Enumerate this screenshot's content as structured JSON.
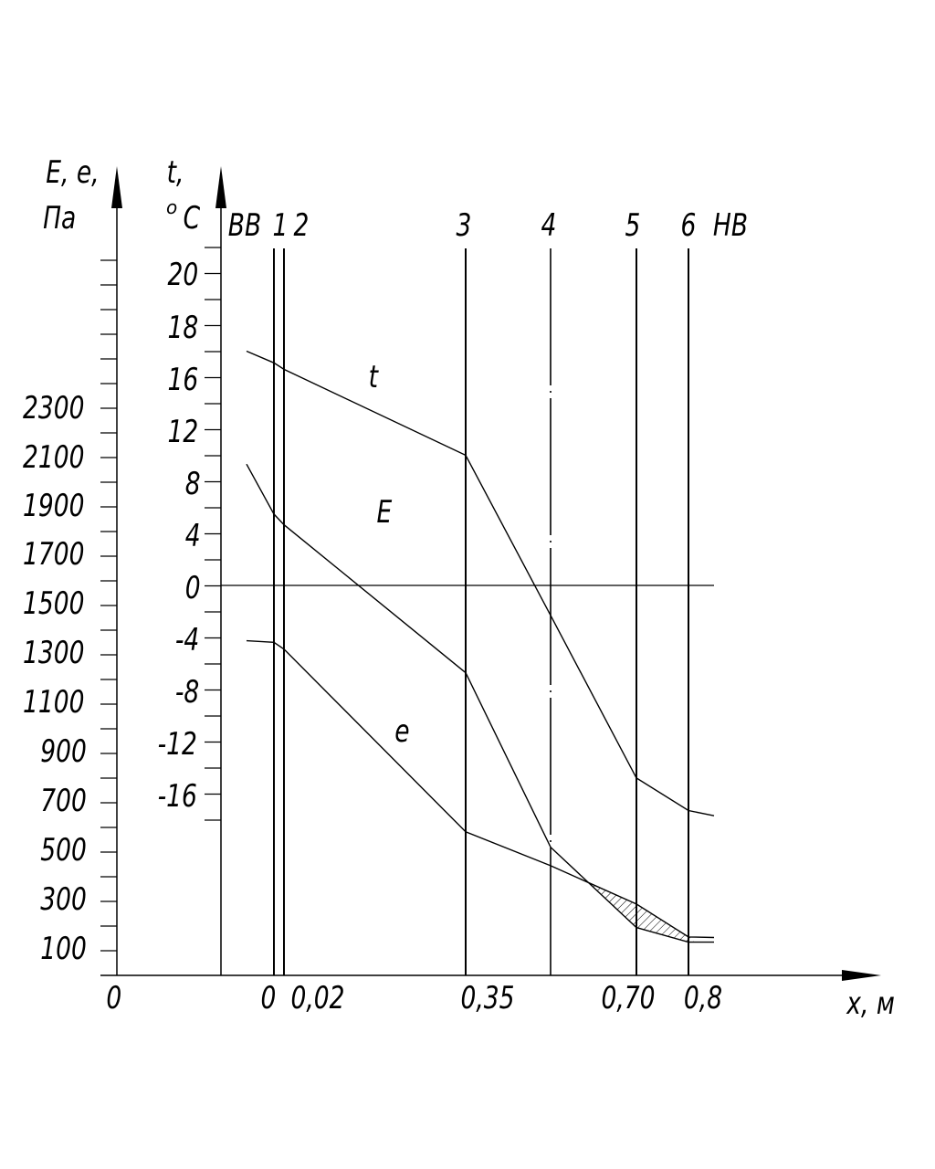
{
  "chart_data": {
    "type": "line",
    "left_axis": {
      "label_line1": "E,  e,",
      "label_line2": "Па",
      "tick_labels": [
        "2300",
        "2100",
        "1900",
        "1700",
        "1500",
        "1300",
        "1100",
        "900",
        "700",
        "500",
        "300",
        "100"
      ],
      "origin_label": "0"
    },
    "temp_axis": {
      "label_line1": "t,",
      "label_line2_sup": "o",
      "label_line2": "C",
      "tick_labels": [
        "20",
        "18",
        "16",
        "12",
        "8",
        "4",
        "0",
        "-4",
        "-8",
        "-12",
        "-16"
      ]
    },
    "x_axis": {
      "label": "x,  м",
      "tick_labels": [
        "0",
        "0,02",
        "0,35",
        "0,70",
        "0,8"
      ]
    },
    "section_labels": [
      "ВВ",
      "1",
      "2",
      "3",
      "4",
      "5",
      "6",
      "НВ"
    ],
    "series": [
      {
        "name": "t",
        "points": [
          [
            "ВВ",
            18
          ],
          [
            "1",
            17.1
          ],
          [
            "2",
            16.6
          ],
          [
            "3",
            10.0
          ],
          [
            "4",
            -2.3
          ],
          [
            "5",
            -14.8
          ],
          [
            "6",
            -17.3
          ],
          [
            "НВ",
            -17.7
          ]
        ]
      },
      {
        "name": "E",
        "points": [
          [
            "ВВ",
            2063
          ],
          [
            "1",
            1861
          ],
          [
            "2",
            1818
          ],
          [
            "3",
            1220
          ],
          [
            "4",
            515
          ],
          [
            "5",
            190
          ],
          [
            "6",
            131
          ],
          [
            "НВ",
            131
          ]
        ]
      },
      {
        "name": "e",
        "points": [
          [
            "ВВ",
            1349
          ],
          [
            "1",
            1343
          ],
          [
            "2",
            1315
          ],
          [
            "3",
            577
          ],
          [
            "4",
            440
          ],
          [
            "5",
            285
          ],
          [
            "6",
            152
          ],
          [
            "НВ",
            150
          ]
        ]
      }
    ],
    "hatched_region": "E < e between sections 4 and 6"
  }
}
